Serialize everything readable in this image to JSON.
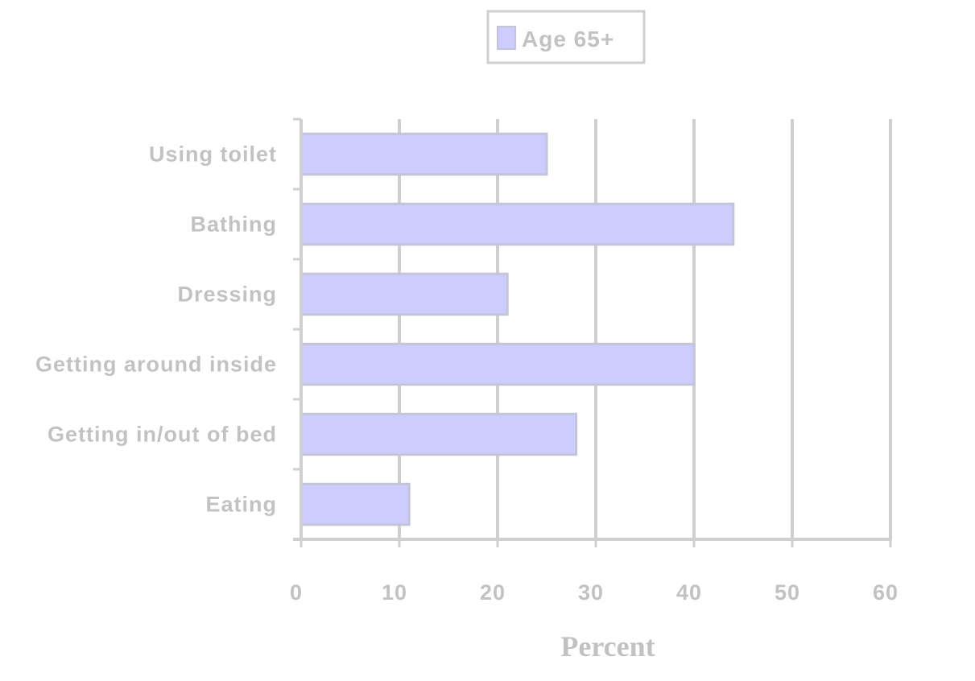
{
  "chart_data": {
    "type": "bar",
    "orientation": "horizontal",
    "categories": [
      "Using toilet",
      "Bathing",
      "Dressing",
      "Getting around inside",
      "Getting in/out of bed",
      "Eating"
    ],
    "series": [
      {
        "name": "Age 65+",
        "values": [
          25,
          44,
          21,
          40,
          28,
          11
        ]
      }
    ],
    "xlabel": "Percent",
    "ylabel": "",
    "xlim": [
      0,
      60
    ],
    "xticks": [
      "0",
      "10",
      "20",
      "30",
      "40",
      "50",
      "60"
    ],
    "grid": true,
    "legend_position": "top",
    "colors": {
      "bar_fill": "#ccccff",
      "bar_stroke": "#c4c4d8",
      "grid": "#cfcfcf",
      "text": "#c2c2c2"
    }
  }
}
